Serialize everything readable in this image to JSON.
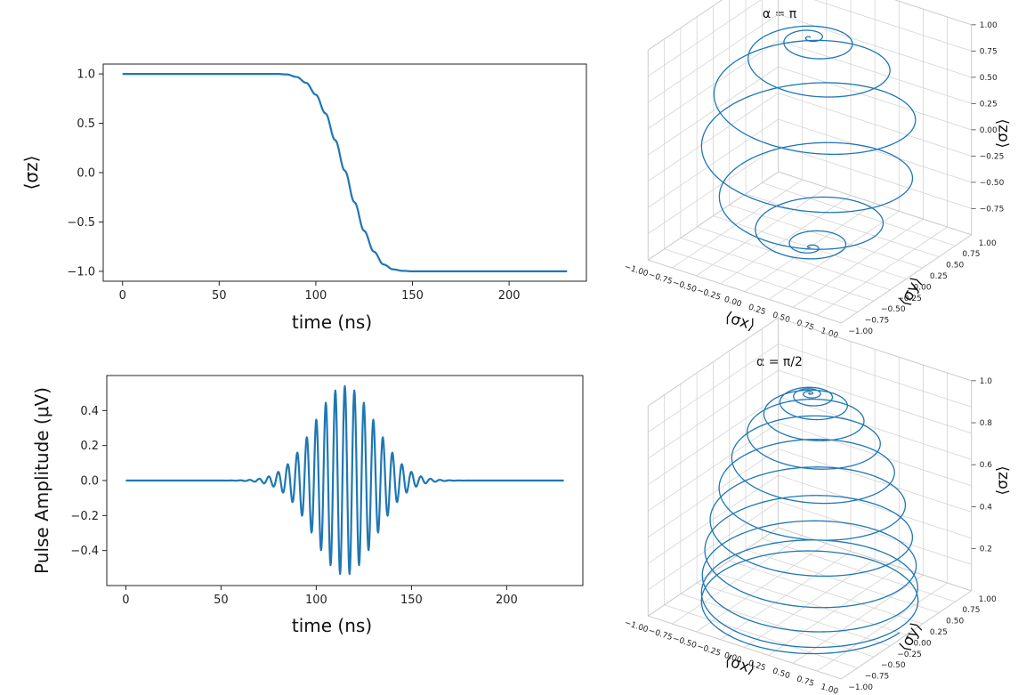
{
  "chart_data": [
    {
      "type": "line",
      "title": "",
      "xlabel": "time (ns)",
      "ylabel": "⟨σz⟩",
      "xlim": [
        -10,
        240
      ],
      "ylim": [
        -1.1,
        1.1
      ],
      "xticks": [
        0,
        50,
        100,
        150,
        200
      ],
      "yticks": [
        1.0,
        0.5,
        0.0,
        -0.5,
        -1.0
      ],
      "xtick_labels": [
        "0",
        "50",
        "100",
        "150",
        "200"
      ],
      "ytick_labels": [
        "1.0",
        "0.5",
        "0.0",
        "−0.5",
        "−1.0"
      ],
      "series": [
        {
          "name": "sigma_z",
          "x": [
            0,
            20,
            40,
            60,
            70,
            80,
            85,
            90,
            95,
            100,
            105,
            110,
            115,
            120,
            125,
            130,
            135,
            140,
            145,
            150,
            160,
            180,
            200,
            230
          ],
          "values": [
            1.0,
            1.0,
            1.0,
            1.0,
            1.0,
            1.0,
            0.995,
            0.97,
            0.91,
            0.79,
            0.6,
            0.33,
            0.02,
            -0.3,
            -0.59,
            -0.8,
            -0.93,
            -0.98,
            -0.995,
            -1.0,
            -1.0,
            -1.0,
            -1.0,
            -1.0
          ]
        }
      ]
    },
    {
      "type": "line",
      "title": "",
      "xlabel": "time (ns)",
      "ylabel": "Pulse Amplitude (μV)",
      "xlim": [
        -10,
        240
      ],
      "ylim": [
        -0.6,
        0.6
      ],
      "xticks": [
        0,
        50,
        100,
        150,
        200
      ],
      "yticks": [
        0.4,
        0.2,
        0.0,
        -0.2,
        -0.4
      ],
      "xtick_labels": [
        "0",
        "50",
        "100",
        "150",
        "200"
      ],
      "ytick_labels": [
        "0.4",
        "0.2",
        "0.0",
        "−0.2",
        "−0.4"
      ],
      "series": [
        {
          "name": "pulse",
          "model": "A*exp(-(t-t0)^2/(2*s^2))*cos(2*pi*f*(t-t0))",
          "A": 0.54,
          "t0": 115,
          "s": 16,
          "f": 0.2,
          "t_start": 0,
          "t_end": 230
        }
      ]
    },
    {
      "type": "line3d",
      "title": "α = π",
      "xlabel": "⟨σx⟩",
      "ylabel": "⟨σy⟩",
      "zlabel": "⟨σz⟩",
      "xlim": [
        -1,
        1
      ],
      "ylim": [
        -1,
        1
      ],
      "zlim": [
        -1,
        1
      ],
      "xtick_labels": [
        "−1.00",
        "−0.75",
        "−0.50",
        "−0.25",
        "0.00",
        "0.25",
        "0.50",
        "0.75",
        "1.00"
      ],
      "ytick_labels": [
        "−1.00",
        "−0.75",
        "−0.50",
        "−0.25",
        "0.00",
        "0.25",
        "0.50",
        "0.75",
        "1.00"
      ],
      "ztick_labels": [
        "1.00",
        "0.75",
        "0.50",
        "0.25",
        "0.00",
        "−0.25",
        "−0.50",
        "−0.75"
      ],
      "series": [
        {
          "name": "bloch_pi",
          "model": "spiral",
          "turns": 9,
          "z_start": 1.0,
          "z_end": -1.0,
          "theta_end_deg": 180
        }
      ]
    },
    {
      "type": "line3d",
      "title": "α = π/2",
      "xlabel": "⟨σx⟩",
      "ylabel": "⟨σy⟩",
      "zlabel": "⟨σz⟩",
      "xlim": [
        -1,
        1
      ],
      "ylim": [
        -1,
        1
      ],
      "zlim": [
        0,
        1
      ],
      "xtick_labels": [
        "−1.00",
        "−0.75",
        "−0.50",
        "−0.25",
        "0.00",
        "0.25",
        "0.50",
        "0.75",
        "1.00"
      ],
      "ytick_labels": [
        "−1.00",
        "−0.75",
        "−0.50",
        "−0.25",
        "0.00",
        "0.25",
        "0.50",
        "0.75",
        "1.00"
      ],
      "ztick_labels": [
        "1.0",
        "0.8",
        "0.6",
        "0.4",
        "0.2"
      ],
      "series": [
        {
          "name": "bloch_pi_half",
          "model": "spiral",
          "turns": 13,
          "z_start": 1.0,
          "z_end": 0.0,
          "theta_end_deg": 90
        }
      ]
    }
  ]
}
